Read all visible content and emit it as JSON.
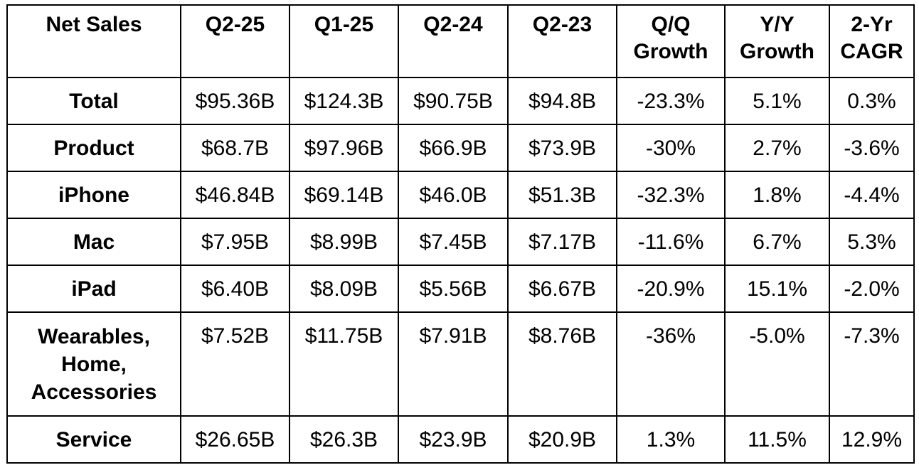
{
  "table": {
    "headers": [
      "Net Sales",
      "Q2-25",
      "Q1-25",
      "Q2-24",
      "Q2-23",
      [
        "Q/Q",
        "Growth"
      ],
      [
        "Y/Y",
        "Growth"
      ],
      [
        "2-Yr",
        "CAGR"
      ]
    ],
    "rows": [
      {
        "label": [
          "Total"
        ],
        "cells": [
          "$95.36B",
          "$124.3B",
          "$90.75B",
          "$94.8B",
          "-23.3%",
          "5.1%",
          "0.3%"
        ]
      },
      {
        "label": [
          "Product"
        ],
        "cells": [
          "$68.7B",
          "$97.96B",
          "$66.9B",
          "$73.9B",
          "-30%",
          "2.7%",
          "-3.6%"
        ]
      },
      {
        "label": [
          "iPhone"
        ],
        "cells": [
          "$46.84B",
          "$69.14B",
          "$46.0B",
          "$51.3B",
          "-32.3%",
          "1.8%",
          "-4.4%"
        ]
      },
      {
        "label": [
          "Mac"
        ],
        "cells": [
          "$7.95B",
          "$8.99B",
          "$7.45B",
          "$7.17B",
          "-11.6%",
          "6.7%",
          "5.3%"
        ]
      },
      {
        "label": [
          "iPad"
        ],
        "cells": [
          "$6.40B",
          "$8.09B",
          "$5.56B",
          "$6.67B",
          "-20.9%",
          "15.1%",
          "-2.0%"
        ]
      },
      {
        "label": [
          "Wearables,",
          "Home,",
          "Accessories"
        ],
        "cells": [
          "$7.52B",
          "$11.75B",
          "$7.91B",
          "$8.76B",
          "-36%",
          "-5.0%",
          "-7.3%"
        ]
      },
      {
        "label": [
          "Service"
        ],
        "cells": [
          "$26.65B",
          "$26.3B",
          "$23.9B",
          "$20.9B",
          "1.3%",
          "11.5%",
          "12.9%"
        ]
      }
    ]
  }
}
